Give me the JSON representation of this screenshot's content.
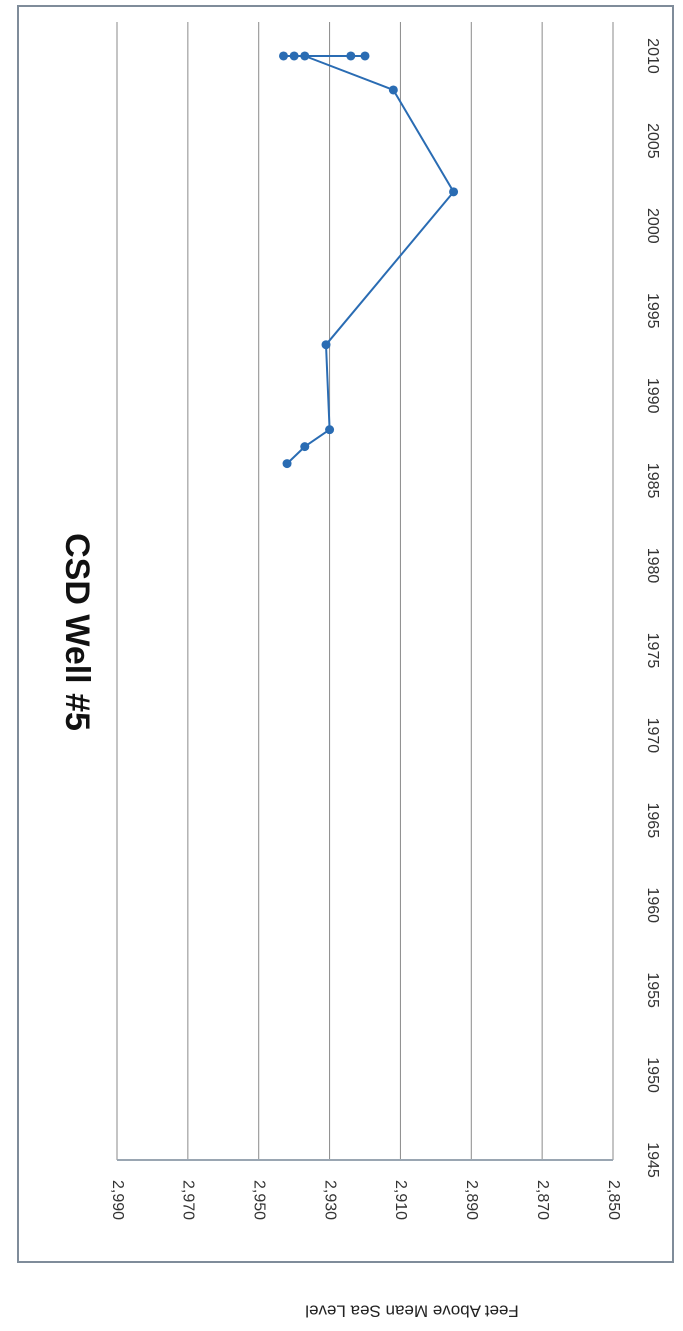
{
  "chart_data": {
    "type": "line",
    "title": "CSD Well #5",
    "ylabel": "Feet Above Mean Sea Level",
    "xlabel": "",
    "xlim": [
      1945,
      2012
    ],
    "ylim": [
      2850,
      2990
    ],
    "x_ticks": [
      "1945",
      "1950",
      "1955",
      "1960",
      "1965",
      "1970",
      "1975",
      "1980",
      "1985",
      "1990",
      "1995",
      "2000",
      "2005",
      "2010"
    ],
    "y_ticks": [
      "2,850",
      "2,870",
      "2,890",
      "2,910",
      "2,930",
      "2,950",
      "2,970",
      "2,990"
    ],
    "grid": true,
    "rotation": "rotated 90 degrees clockwise",
    "colors": {
      "series": "#2a6cb3",
      "grid": "#8a8a8a",
      "frame": "#7f8c9a"
    },
    "series": [
      {
        "points": [
          {
            "x": 1986.0,
            "y": 2942
          },
          {
            "x": 1987.0,
            "y": 2937
          },
          {
            "x": 1988.0,
            "y": 2930
          },
          {
            "x": 1993.0,
            "y": 2931
          },
          {
            "x": 2002.0,
            "y": 2895
          },
          {
            "x": 2008.0,
            "y": 2912
          },
          {
            "x": 2010.0,
            "y": 2937
          },
          {
            "x": 2010.0,
            "y": 2940
          },
          {
            "x": 2010.0,
            "y": 2943
          },
          {
            "x": 2010.0,
            "y": 2924
          },
          {
            "x": 2010.0,
            "y": 2920
          }
        ]
      }
    ]
  }
}
